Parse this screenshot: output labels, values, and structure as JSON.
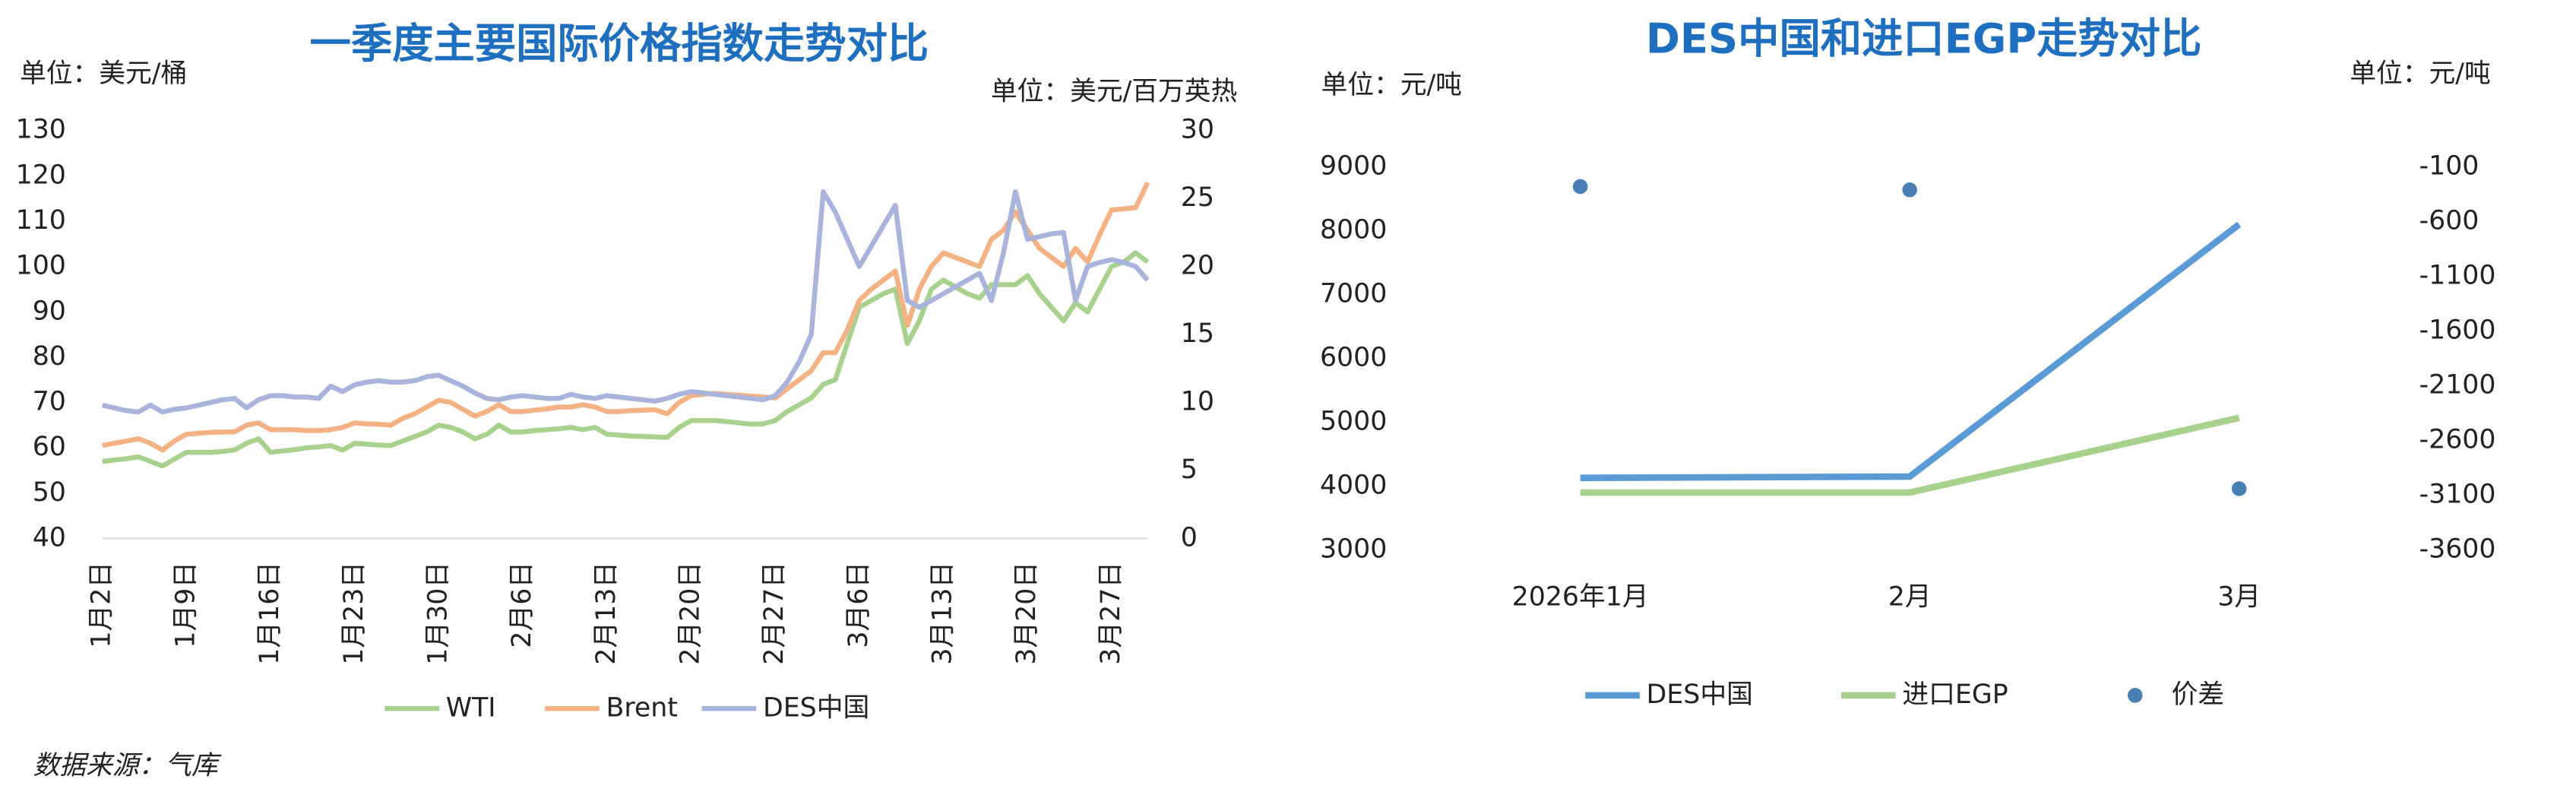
{
  "chart_data": [
    {
      "type": "line",
      "title": "一季度主要国际价格指数走势对比",
      "y_unit": "单位：美元/桶",
      "y2_unit": "单位：美元/百万英热",
      "categories": [
        "1月2日",
        null,
        null,
        null,
        null,
        null,
        null,
        "1月9日",
        null,
        null,
        null,
        null,
        null,
        null,
        "1月16日",
        null,
        null,
        null,
        null,
        null,
        null,
        "1月23日",
        null,
        null,
        null,
        null,
        null,
        null,
        "1月30日",
        null,
        null,
        null,
        null,
        null,
        null,
        "2月6日",
        null,
        null,
        null,
        null,
        null,
        null,
        "2月13日",
        null,
        null,
        null,
        null,
        null,
        null,
        "2月20日",
        null,
        null,
        null,
        null,
        null,
        null,
        "2月27日",
        null,
        null,
        null,
        null,
        null,
        null,
        "3月6日",
        null,
        null,
        null,
        null,
        null,
        null,
        "3月13日",
        null,
        null,
        null,
        null,
        null,
        null,
        "3月20日",
        null,
        null,
        null,
        null,
        null,
        null,
        "3月27日",
        null,
        null,
        null
      ],
      "ylim": [
        40,
        130
      ],
      "yticks": [
        40,
        50,
        60,
        70,
        80,
        90,
        100,
        110,
        120,
        130
      ],
      "y2lim": [
        0,
        30
      ],
      "y2ticks": [
        0,
        5,
        10,
        15,
        20,
        25,
        30
      ],
      "series": [
        {
          "name": "WTI",
          "color": "#a9d18e",
          "values": [
            57,
            57.3,
            57.6,
            58,
            57,
            56,
            57.5,
            59,
            59,
            59,
            59.2,
            59.5,
            61,
            62,
            59,
            59.3,
            59.6,
            60,
            60.2,
            60.5,
            59.5,
            61,
            60.8,
            60.6,
            60.5,
            61.5,
            62.5,
            63.5,
            65,
            64.5,
            63.5,
            62,
            63,
            65,
            63.5,
            63.5,
            63.8,
            64,
            64.2,
            64.5,
            64,
            64.5,
            63,
            62.8,
            62.6,
            62.5,
            62.4,
            62.3,
            64.5,
            66,
            66,
            66,
            65.8,
            65.5,
            65.2,
            65.3,
            66,
            68,
            69.5,
            71,
            74,
            75,
            83,
            91,
            92.5,
            94,
            95,
            83,
            88,
            95,
            97,
            95.5,
            94,
            93,
            96,
            96,
            96,
            98,
            94,
            91,
            88,
            92,
            90,
            95,
            100,
            101,
            103,
            101
          ]
        },
        {
          "name": "Brent",
          "color": "#f4b183",
          "values": [
            60.5,
            61,
            61.5,
            62,
            61,
            59.5,
            61.5,
            63,
            63.2,
            63.4,
            63.5,
            63.5,
            65,
            65.5,
            64,
            64,
            64,
            63.8,
            63.8,
            64,
            64.5,
            65.5,
            65.3,
            65.2,
            65,
            66.5,
            67.5,
            69,
            70.5,
            70,
            68.5,
            67,
            68,
            69.5,
            68,
            68,
            68.3,
            68.6,
            69,
            69,
            69.5,
            69,
            68,
            68,
            68.2,
            68.3,
            68.4,
            67.5,
            70,
            71.5,
            71.8,
            72,
            71.8,
            71.6,
            71.4,
            71.2,
            71,
            73,
            75,
            77,
            81,
            81,
            86,
            92.5,
            95,
            97,
            99,
            87,
            95,
            100,
            103,
            102,
            101,
            100,
            106,
            108,
            112,
            108,
            104,
            102,
            100,
            104,
            101,
            107,
            112.5,
            112.7,
            113,
            118.5
          ]
        },
        {
          "name": "DES中国",
          "color": "#a9b4dc",
          "axis": "y2",
          "values": [
            9.8,
            9.6,
            9.4,
            9.3,
            9.8,
            9.3,
            9.5,
            9.6,
            9.8,
            10,
            10.2,
            10.3,
            9.6,
            10.2,
            10.5,
            10.5,
            10.4,
            10.4,
            10.3,
            11.2,
            10.8,
            11.3,
            11.5,
            11.6,
            11.5,
            11.5,
            11.6,
            11.9,
            12,
            11.6,
            11.2,
            10.7,
            10.3,
            10.2,
            10.4,
            10.5,
            10.4,
            10.3,
            10.3,
            10.6,
            10.4,
            10.3,
            10.5,
            10.4,
            10.3,
            10.2,
            10.1,
            10.3,
            10.6,
            10.8,
            10.7,
            10.6,
            10.5,
            10.4,
            10.3,
            10.2,
            10.5,
            11.5,
            13,
            15,
            25.5,
            24,
            22,
            20,
            21.5,
            23,
            24.5,
            17.5,
            17,
            17.5,
            18,
            18.5,
            19,
            19.5,
            17.5,
            21,
            25.5,
            22,
            22.2,
            22.4,
            22.5,
            17.5,
            20,
            20.3,
            20.5,
            20.3,
            20,
            19
          ]
        }
      ]
    },
    {
      "type": "line",
      "title": "DES中国和进口EGP走势对比",
      "y_unit": "单位：元/吨",
      "y2_unit": "单位：元/吨",
      "categories": [
        "2026年1月",
        "2月",
        "3月"
      ],
      "ylim": [
        3000,
        9000
      ],
      "yticks": [
        3000,
        4000,
        5000,
        6000,
        7000,
        8000,
        9000
      ],
      "y2lim": [
        -3600,
        -100
      ],
      "y2ticks": [
        -3600,
        -3100,
        -2600,
        -2100,
        -1600,
        -1100,
        -600,
        -100
      ],
      "series": [
        {
          "name": "DES中国",
          "color": "#5b9bd5",
          "values": [
            4130,
            4150,
            8100
          ]
        },
        {
          "name": "进口EGP",
          "color": "#a9d18e",
          "values": [
            3900,
            3900,
            5070
          ]
        },
        {
          "name": "价差",
          "color": "#4a7fb5",
          "axis": "y2",
          "style": "markers",
          "values": [
            -280,
            -310,
            -3040
          ]
        }
      ]
    }
  ],
  "source": "数据来源：气库"
}
